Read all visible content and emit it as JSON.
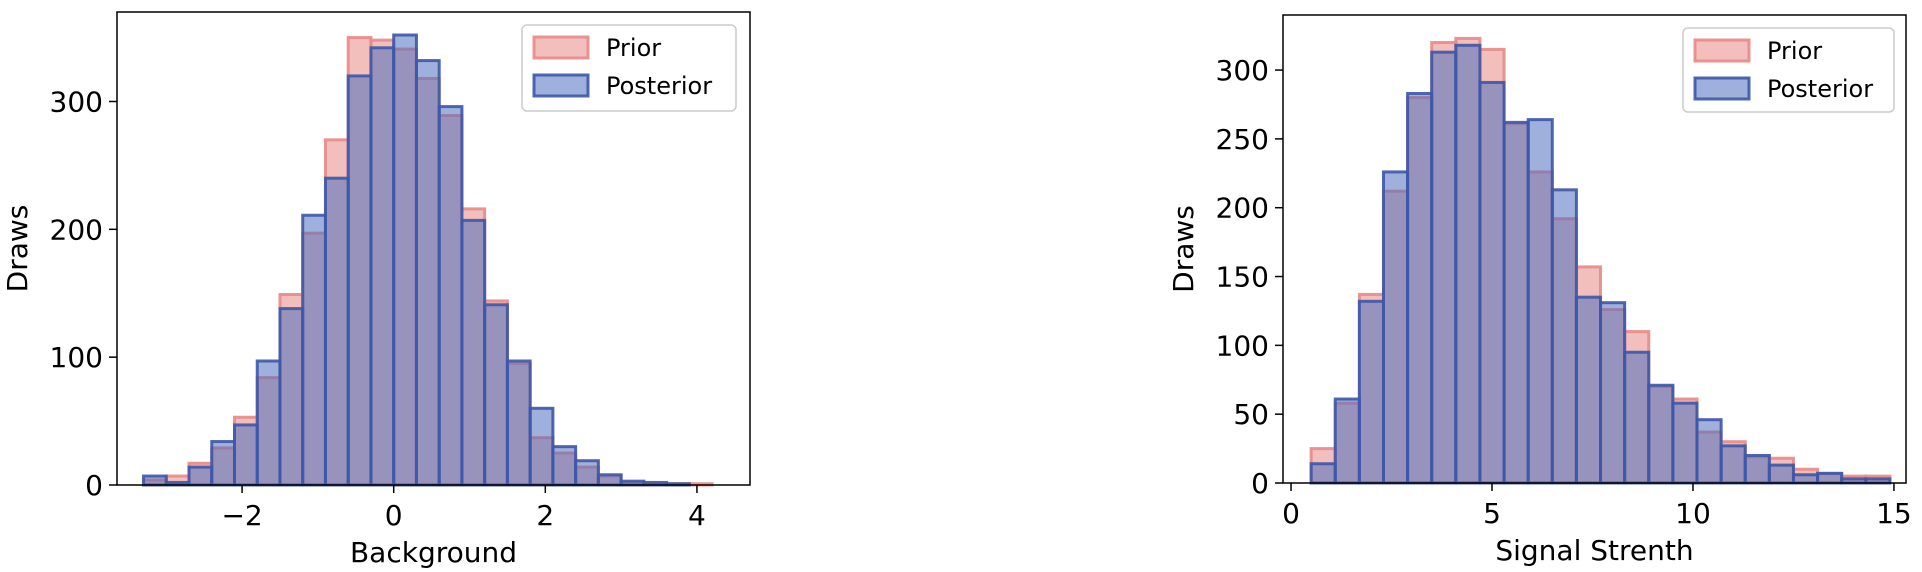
{
  "chart_data": [
    {
      "type": "histogram",
      "xlabel": "Background",
      "ylabel": "Draws",
      "xlim": [
        -3.65,
        4.7
      ],
      "ylim": [
        0,
        370
      ],
      "xticks": [
        -2,
        0,
        2,
        4
      ],
      "xtick_labels": [
        "−2",
        "0",
        "2",
        "4"
      ],
      "yticks": [
        0,
        100,
        200,
        300
      ],
      "ytick_labels": [
        "0",
        "100",
        "200",
        "300"
      ],
      "legend_position": "top-right",
      "series": [
        {
          "name": "Prior",
          "fill": "#e88a86",
          "edge": "#e88a86",
          "bins": [
            [
              -3.3,
              -3.0,
              4
            ],
            [
              -3.0,
              -2.7,
              7
            ],
            [
              -2.7,
              -2.4,
              17
            ],
            [
              -2.4,
              -2.1,
              29
            ],
            [
              -2.1,
              -1.8,
              53
            ],
            [
              -1.8,
              -1.5,
              84
            ],
            [
              -1.5,
              -1.2,
              149
            ],
            [
              -1.2,
              -0.9,
              197
            ],
            [
              -0.9,
              -0.6,
              270
            ],
            [
              -0.6,
              -0.3,
              350
            ],
            [
              -0.3,
              0.0,
              348
            ],
            [
              0.0,
              0.3,
              341
            ],
            [
              0.3,
              0.6,
              318
            ],
            [
              0.6,
              0.9,
              289
            ],
            [
              0.9,
              1.2,
              216
            ],
            [
              1.2,
              1.5,
              144
            ],
            [
              1.5,
              1.8,
              95
            ],
            [
              1.8,
              2.1,
              37
            ],
            [
              2.1,
              2.4,
              25
            ],
            [
              2.4,
              2.7,
              14
            ],
            [
              2.7,
              3.0,
              7
            ],
            [
              3.0,
              3.3,
              2
            ],
            [
              3.3,
              3.6,
              1
            ],
            [
              3.6,
              3.9,
              1
            ],
            [
              3.9,
              4.2,
              1
            ]
          ]
        },
        {
          "name": "Posterior",
          "fill": "#4f6fbd",
          "edge": "#3d56a8",
          "bins": [
            [
              -3.3,
              -3.0,
              7
            ],
            [
              -3.0,
              -2.7,
              2
            ],
            [
              -2.7,
              -2.4,
              14
            ],
            [
              -2.4,
              -2.1,
              34
            ],
            [
              -2.1,
              -1.8,
              47
            ],
            [
              -1.8,
              -1.5,
              97
            ],
            [
              -1.5,
              -1.2,
              138
            ],
            [
              -1.2,
              -0.9,
              211
            ],
            [
              -0.9,
              -0.6,
              240
            ],
            [
              -0.6,
              -0.3,
              320
            ],
            [
              -0.3,
              0.0,
              342
            ],
            [
              0.0,
              0.3,
              352
            ],
            [
              0.3,
              0.6,
              332
            ],
            [
              0.6,
              0.9,
              296
            ],
            [
              0.9,
              1.2,
              207
            ],
            [
              1.2,
              1.5,
              141
            ],
            [
              1.5,
              1.8,
              97
            ],
            [
              1.8,
              2.1,
              60
            ],
            [
              2.1,
              2.4,
              30
            ],
            [
              2.4,
              2.7,
              19
            ],
            [
              2.7,
              3.0,
              8
            ],
            [
              3.0,
              3.3,
              3
            ],
            [
              3.3,
              3.6,
              2
            ],
            [
              3.6,
              3.9,
              1
            ],
            [
              3.9,
              4.2,
              0
            ]
          ]
        }
      ]
    },
    {
      "type": "histogram",
      "xlabel": "Signal Strenth",
      "ylabel": "Draws",
      "xlim": [
        -0.2,
        15.3
      ],
      "ylim": [
        0,
        340
      ],
      "xticks": [
        0,
        5,
        10,
        15
      ],
      "xtick_labels": [
        "0",
        "5",
        "10",
        "15"
      ],
      "yticks": [
        0,
        50,
        100,
        150,
        200,
        250,
        300
      ],
      "ytick_labels": [
        "0",
        "50",
        "100",
        "150",
        "200",
        "250",
        "300"
      ],
      "legend_position": "top-right",
      "series": [
        {
          "name": "Prior",
          "fill": "#e88a86",
          "edge": "#e88a86",
          "bins": [
            [
              0.5,
              1.1,
              25
            ],
            [
              1.1,
              1.7,
              58
            ],
            [
              1.7,
              2.3,
              137
            ],
            [
              2.3,
              2.9,
              212
            ],
            [
              2.9,
              3.5,
              280
            ],
            [
              3.5,
              4.1,
              320
            ],
            [
              4.1,
              4.7,
              323
            ],
            [
              4.7,
              5.3,
              315
            ],
            [
              5.3,
              5.9,
              261
            ],
            [
              5.9,
              6.5,
              226
            ],
            [
              6.5,
              7.1,
              192
            ],
            [
              7.1,
              7.7,
              157
            ],
            [
              7.7,
              8.3,
              126
            ],
            [
              8.3,
              8.9,
              110
            ],
            [
              8.9,
              9.5,
              70
            ],
            [
              9.5,
              10.1,
              61
            ],
            [
              10.1,
              10.7,
              37
            ],
            [
              10.7,
              11.3,
              30
            ],
            [
              11.3,
              11.9,
              19
            ],
            [
              11.9,
              12.5,
              18
            ],
            [
              12.5,
              13.1,
              10
            ],
            [
              13.1,
              13.7,
              7
            ],
            [
              13.7,
              14.3,
              5
            ],
            [
              14.3,
              14.9,
              5
            ]
          ]
        },
        {
          "name": "Posterior",
          "fill": "#4f6fbd",
          "edge": "#3d56a8",
          "bins": [
            [
              0.5,
              1.1,
              14
            ],
            [
              1.1,
              1.7,
              61
            ],
            [
              1.7,
              2.3,
              132
            ],
            [
              2.3,
              2.9,
              226
            ],
            [
              2.9,
              3.5,
              283
            ],
            [
              3.5,
              4.1,
              313
            ],
            [
              4.1,
              4.7,
              318
            ],
            [
              4.7,
              5.3,
              291
            ],
            [
              5.3,
              5.9,
              262
            ],
            [
              5.9,
              6.5,
              264
            ],
            [
              6.5,
              7.1,
              213
            ],
            [
              7.1,
              7.7,
              135
            ],
            [
              7.7,
              8.3,
              131
            ],
            [
              8.3,
              8.9,
              95
            ],
            [
              8.9,
              9.5,
              71
            ],
            [
              9.5,
              10.1,
              58
            ],
            [
              10.1,
              10.7,
              46
            ],
            [
              10.7,
              11.3,
              27
            ],
            [
              11.3,
              11.9,
              20
            ],
            [
              11.9,
              12.5,
              13
            ],
            [
              12.5,
              13.1,
              6
            ],
            [
              13.1,
              13.7,
              7
            ],
            [
              13.7,
              14.3,
              3
            ],
            [
              14.3,
              14.9,
              3
            ]
          ]
        }
      ]
    }
  ]
}
